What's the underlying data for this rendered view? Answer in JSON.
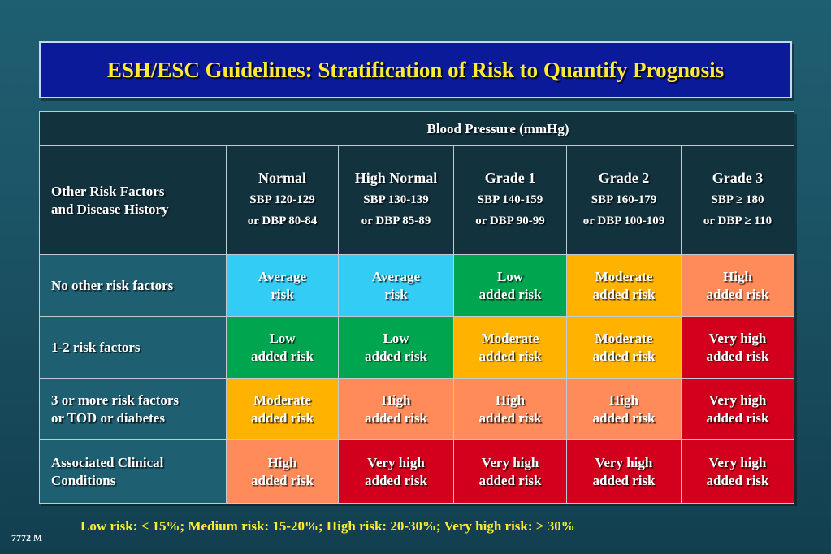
{
  "title": "ESH/ESC Guidelines: Stratification of Risk to Quantify Prognosis",
  "table": {
    "bp_header": "Blood Pressure (mmHg)",
    "risk_header_line1": "Other Risk Factors",
    "risk_header_line2": "and Disease History",
    "columns": [
      {
        "name": "Normal",
        "line1": "SBP 120-129",
        "line2": "or DBP 80-84"
      },
      {
        "name": "High Normal",
        "line1": "SBP 130-139",
        "line2": "or DBP 85-89"
      },
      {
        "name": "Grade 1",
        "line1": "SBP 140-159",
        "line2": "or DBP 90-99"
      },
      {
        "name": "Grade 2",
        "line1": "SBP 160-179",
        "line2": "or DBP 100-109"
      },
      {
        "name": "Grade 3",
        "line1": "SBP ≥ 180",
        "line2": "or DBP ≥ 110"
      }
    ],
    "rows": [
      {
        "label1": "No other risk factors",
        "label2": "",
        "cells": [
          {
            "l1": "Average",
            "l2": "risk",
            "level": "avg"
          },
          {
            "l1": "Average",
            "l2": "risk",
            "level": "avg"
          },
          {
            "l1": "Low",
            "l2": "added risk",
            "level": "low"
          },
          {
            "l1": "Moderate",
            "l2": "added risk",
            "level": "mod"
          },
          {
            "l1": "High",
            "l2": "added risk",
            "level": "high"
          }
        ]
      },
      {
        "label1": "1-2 risk factors",
        "label2": "",
        "cells": [
          {
            "l1": "Low",
            "l2": "added risk",
            "level": "low"
          },
          {
            "l1": "Low",
            "l2": "added risk",
            "level": "low"
          },
          {
            "l1": "Moderate",
            "l2": "added risk",
            "level": "mod"
          },
          {
            "l1": "Moderate",
            "l2": "added risk",
            "level": "mod"
          },
          {
            "l1": "Very high",
            "l2": "added risk",
            "level": "vhigh"
          }
        ]
      },
      {
        "label1": "3 or more risk factors",
        "label2": "or TOD or diabetes",
        "cells": [
          {
            "l1": "Moderate",
            "l2": "added risk",
            "level": "mod"
          },
          {
            "l1": "High",
            "l2": "added risk",
            "level": "high"
          },
          {
            "l1": "High",
            "l2": "added risk",
            "level": "high"
          },
          {
            "l1": "High",
            "l2": "added risk",
            "level": "high"
          },
          {
            "l1": "Very high",
            "l2": "added risk",
            "level": "vhigh"
          }
        ]
      },
      {
        "label1": "Associated Clinical",
        "label2": "Conditions",
        "cells": [
          {
            "l1": "High",
            "l2": "added risk",
            "level": "high"
          },
          {
            "l1": "Very high",
            "l2": "added risk",
            "level": "vhigh"
          },
          {
            "l1": "Very high",
            "l2": "added risk",
            "level": "vhigh"
          },
          {
            "l1": "Very high",
            "l2": "added risk",
            "level": "vhigh"
          },
          {
            "l1": "Very high",
            "l2": "added risk",
            "level": "vhigh"
          }
        ]
      }
    ]
  },
  "footnote": "Low risk: < 15%; Medium risk: 15-20%; High risk: 20-30%; Very high risk: > 30%",
  "slide_id": "7772 M",
  "colors": {
    "avg": "#33ccf5",
    "low": "#00a64f",
    "mod": "#ffb300",
    "high": "#ff8a5a",
    "vhigh": "#d2001c",
    "title_bg": "#0a1a99",
    "title_text": "#ffeb33"
  }
}
